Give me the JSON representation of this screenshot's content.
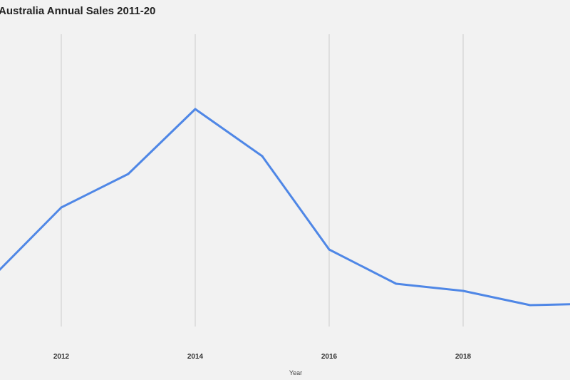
{
  "chart_data": {
    "type": "line",
    "title": "Australia Annual Sales 2011-20",
    "xlabel": "Year",
    "ylabel": "",
    "x": [
      2011,
      2012,
      2013,
      2014,
      2015,
      2016,
      2017,
      2018,
      2019,
      2020
    ],
    "series": [
      {
        "values": [
          147,
          242,
          289,
          380,
          314,
          183,
          135,
          125,
          105,
          107
        ]
      }
    ],
    "x_ticks": [
      "2012",
      "2014",
      "2016",
      "2018"
    ],
    "xlim": [
      2011,
      2020
    ],
    "ylim": [
      0,
      533
    ],
    "grid": "vertical",
    "line_color": "#4f87e6",
    "grid_color": "#cccccc"
  }
}
